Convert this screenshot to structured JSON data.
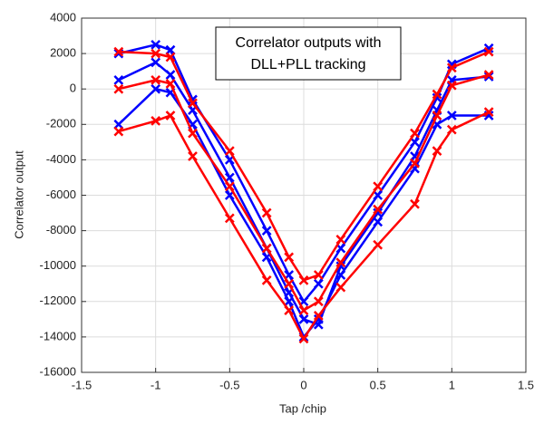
{
  "chart_data": {
    "type": "line",
    "title": [
      "Correlator outputs with",
      "DLL+PLL tracking"
    ],
    "x_label": "Tap /chip",
    "y_label": "Correlator output",
    "x": [
      -1.25,
      -1,
      -0.9,
      -0.75,
      -0.5,
      -0.25,
      -0.1,
      0,
      0.1,
      0.25,
      0.5,
      0.75,
      0.9,
      1,
      1.25
    ],
    "series": [
      {
        "color": "#0000ff",
        "values": [
          2000,
          2500,
          2200,
          -600,
          -4000,
          -8000,
          -10500,
          -12000,
          -11000,
          -9000,
          -6000,
          -3000,
          -500,
          1400,
          2300
        ]
      },
      {
        "color": "#0000ff",
        "values": [
          -2000,
          0,
          -200,
          -2000,
          -6000,
          -9500,
          -12000,
          -14000,
          -13000,
          -10500,
          -7500,
          -4500,
          -2000,
          -1500,
          -1500
        ]
      },
      {
        "color": "#0000ff",
        "values": [
          500,
          1500,
          800,
          -1200,
          -5000,
          -9000,
          -11500,
          -13000,
          -13300,
          -10000,
          -7000,
          -3800,
          -1200,
          500,
          700
        ]
      },
      {
        "color": "#ff0000",
        "values": [
          2100,
          2000,
          1800,
          -800,
          -3500,
          -7000,
          -9500,
          -10800,
          -10500,
          -8500,
          -5500,
          -2500,
          -300,
          1200,
          2100
        ]
      },
      {
        "color": "#ff0000",
        "values": [
          -2400,
          -1800,
          -1500,
          -3800,
          -7300,
          -10800,
          -12500,
          -14100,
          -12800,
          -11200,
          -8800,
          -6500,
          -3500,
          -2300,
          -1300
        ]
      },
      {
        "color": "#ff0000",
        "values": [
          0,
          500,
          300,
          -2500,
          -5500,
          -9000,
          -11000,
          -12500,
          -12000,
          -9800,
          -6800,
          -4200,
          -1500,
          200,
          800
        ]
      }
    ],
    "xlim": [
      -1.5,
      1.5
    ],
    "xticks": [
      -1.5,
      -1,
      -0.5,
      0,
      0.5,
      1,
      1.5
    ],
    "ylim": [
      -16000,
      4000
    ],
    "yticks": [
      -16000,
      -14000,
      -12000,
      -10000,
      -8000,
      -6000,
      -4000,
      -2000,
      0,
      2000,
      4000
    ],
    "grid": true
  }
}
